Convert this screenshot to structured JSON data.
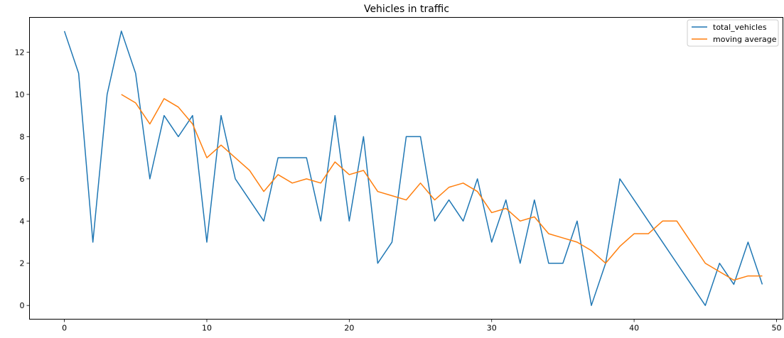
{
  "chart_data": {
    "type": "line",
    "title": "Vehicles in traffic",
    "xlabel": "",
    "ylabel": "",
    "xlim": [
      -2.45,
      50.45
    ],
    "ylim": [
      -0.65,
      13.65
    ],
    "xticks": [
      0,
      10,
      20,
      30,
      40,
      50
    ],
    "yticks": [
      0,
      2,
      4,
      6,
      8,
      10,
      12
    ],
    "grid": false,
    "legend_position": "upper right",
    "x": [
      0,
      1,
      2,
      3,
      4,
      5,
      6,
      7,
      8,
      9,
      10,
      11,
      12,
      13,
      14,
      15,
      16,
      17,
      18,
      19,
      20,
      21,
      22,
      23,
      24,
      25,
      26,
      27,
      28,
      29,
      30,
      31,
      32,
      33,
      34,
      35,
      36,
      37,
      38,
      39,
      40,
      41,
      42,
      43,
      44,
      45,
      46,
      47,
      48,
      49
    ],
    "series": [
      {
        "name": "total_vehicles",
        "color": "#1f77b4",
        "values": [
          13,
          11,
          3,
          10,
          13,
          11,
          6,
          9,
          8,
          9,
          3,
          9,
          6,
          5,
          4,
          7,
          7,
          7,
          4,
          9,
          4,
          8,
          2,
          3,
          8,
          8,
          4,
          5,
          4,
          6,
          3,
          5,
          2,
          5,
          2,
          2,
          4,
          0,
          2,
          6,
          5,
          4,
          3,
          2,
          1,
          0,
          2,
          1,
          3,
          1
        ]
      },
      {
        "name": "moving average",
        "color": "#ff7f0e",
        "values": [
          null,
          null,
          null,
          null,
          10.0,
          9.6,
          8.6,
          9.8,
          9.4,
          8.6,
          7.0,
          7.6,
          7.0,
          6.4,
          5.4,
          6.2,
          5.8,
          6.0,
          5.8,
          6.8,
          6.2,
          6.4,
          5.4,
          5.2,
          5.0,
          5.8,
          5.0,
          5.6,
          5.8,
          5.4,
          4.4,
          4.6,
          4.0,
          4.2,
          3.4,
          3.2,
          3.0,
          2.6,
          2.0,
          2.8,
          3.4,
          3.4,
          4.0,
          4.0,
          3.0,
          2.0,
          1.6,
          1.2,
          1.4,
          1.4
        ]
      }
    ]
  }
}
